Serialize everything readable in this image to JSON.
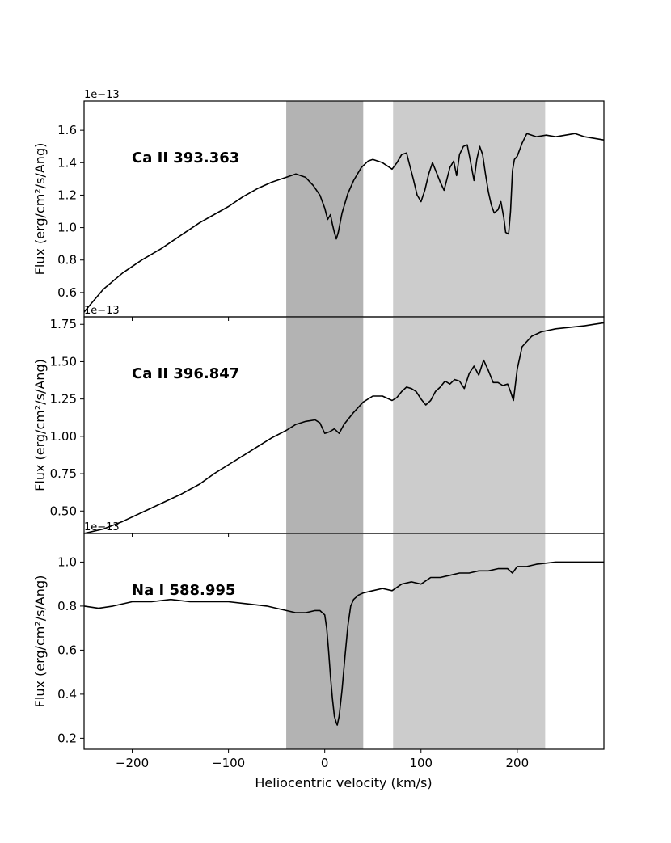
{
  "chart_data": {
    "type": "line",
    "xlabel": "Heliocentric velocity (km/s)",
    "xlim": [
      -250,
      290
    ],
    "xticks": [
      -200,
      -100,
      0,
      100,
      200
    ],
    "xtick_labels": [
      "−200",
      "−100",
      "0",
      "100",
      "200"
    ],
    "shaded_regions": [
      {
        "range": [
          -40,
          40
        ],
        "color": "#b3b3b3"
      },
      {
        "range": [
          71,
          229
        ],
        "color": "#cccccc"
      }
    ],
    "line_color": "#000000",
    "panels": [
      {
        "title": "Ca II 393.363",
        "ylabel": "Flux (erg/cm²/s/Ang)",
        "offset_text": "1e−13",
        "ylim": [
          0.45,
          1.78
        ],
        "yticks": [
          0.6,
          0.8,
          1.0,
          1.2,
          1.4,
          1.6
        ],
        "ytick_labels": [
          "0.6",
          "0.8",
          "1.0",
          "1.2",
          "1.4",
          "1.6"
        ],
        "x": [
          -250,
          -230,
          -210,
          -190,
          -170,
          -150,
          -130,
          -115,
          -100,
          -85,
          -70,
          -55,
          -40,
          -30,
          -20,
          -12,
          -5,
          0,
          3,
          6,
          8,
          10,
          12,
          14,
          18,
          24,
          30,
          38,
          45,
          50,
          55,
          60,
          65,
          70,
          75,
          80,
          85,
          88,
          92,
          96,
          100,
          104,
          108,
          112,
          116,
          120,
          124,
          127,
          130,
          134,
          137,
          140,
          144,
          148,
          151,
          155,
          158,
          161,
          164,
          167,
          170,
          173,
          176,
          180,
          183,
          186,
          188,
          191,
          193,
          195,
          197,
          200,
          205,
          210,
          215,
          220,
          230,
          240,
          250,
          260,
          270,
          280,
          290
        ],
        "values": [
          0.48,
          0.62,
          0.72,
          0.8,
          0.87,
          0.95,
          1.03,
          1.08,
          1.13,
          1.19,
          1.24,
          1.28,
          1.31,
          1.33,
          1.31,
          1.26,
          1.2,
          1.12,
          1.05,
          1.08,
          1.02,
          0.97,
          0.93,
          0.97,
          1.09,
          1.21,
          1.29,
          1.37,
          1.41,
          1.42,
          1.41,
          1.4,
          1.38,
          1.36,
          1.4,
          1.45,
          1.46,
          1.39,
          1.3,
          1.2,
          1.16,
          1.23,
          1.33,
          1.4,
          1.34,
          1.28,
          1.23,
          1.3,
          1.37,
          1.41,
          1.32,
          1.45,
          1.5,
          1.51,
          1.42,
          1.29,
          1.42,
          1.5,
          1.45,
          1.33,
          1.22,
          1.14,
          1.09,
          1.11,
          1.16,
          1.06,
          0.97,
          0.96,
          1.1,
          1.35,
          1.42,
          1.44,
          1.52,
          1.58,
          1.57,
          1.56,
          1.57,
          1.56,
          1.57,
          1.58,
          1.56,
          1.55,
          1.54
        ]
      },
      {
        "title": "Ca II 396.847",
        "ylabel": "Flux (erg/cm²/s/Ang)",
        "offset_text": "1e−13",
        "ylim": [
          0.35,
          1.8
        ],
        "yticks": [
          0.5,
          0.75,
          1.0,
          1.25,
          1.5,
          1.75
        ],
        "ytick_labels": [
          "0.50",
          "0.75",
          "1.00",
          "1.25",
          "1.50",
          "1.75"
        ],
        "x": [
          -250,
          -230,
          -210,
          -190,
          -170,
          -150,
          -130,
          -115,
          -100,
          -85,
          -70,
          -55,
          -40,
          -30,
          -20,
          -10,
          -5,
          0,
          5,
          10,
          15,
          20,
          30,
          40,
          50,
          60,
          70,
          75,
          80,
          85,
          90,
          95,
          100,
          105,
          110,
          115,
          120,
          125,
          130,
          135,
          140,
          145,
          150,
          155,
          160,
          165,
          170,
          175,
          180,
          185,
          190,
          193,
          196,
          200,
          205,
          215,
          225,
          240,
          255,
          270,
          280,
          290
        ],
        "values": [
          0.35,
          0.38,
          0.43,
          0.49,
          0.55,
          0.61,
          0.68,
          0.75,
          0.81,
          0.87,
          0.93,
          0.99,
          1.04,
          1.08,
          1.1,
          1.11,
          1.09,
          1.02,
          1.03,
          1.05,
          1.02,
          1.08,
          1.16,
          1.23,
          1.27,
          1.27,
          1.24,
          1.26,
          1.3,
          1.33,
          1.32,
          1.3,
          1.25,
          1.21,
          1.24,
          1.3,
          1.33,
          1.37,
          1.35,
          1.38,
          1.37,
          1.32,
          1.42,
          1.47,
          1.41,
          1.51,
          1.44,
          1.36,
          1.36,
          1.34,
          1.35,
          1.3,
          1.24,
          1.45,
          1.6,
          1.67,
          1.7,
          1.72,
          1.73,
          1.74,
          1.75,
          1.76
        ]
      },
      {
        "title": "Na I 588.995",
        "ylabel": "Flux (erg/cm²/s/Ang)",
        "offset_text": "1e−13",
        "ylim": [
          0.15,
          1.13
        ],
        "yticks": [
          0.2,
          0.4,
          0.6,
          0.8,
          1.0
        ],
        "ytick_labels": [
          "0.2",
          "0.4",
          "0.6",
          "0.8",
          "1.0"
        ],
        "x": [
          -250,
          -235,
          -220,
          -200,
          -180,
          -160,
          -140,
          -120,
          -100,
          -80,
          -60,
          -40,
          -30,
          -20,
          -10,
          -5,
          0,
          2,
          4,
          6,
          8,
          10,
          12,
          13,
          15,
          18,
          21,
          24,
          27,
          30,
          35,
          40,
          50,
          60,
          70,
          80,
          90,
          100,
          110,
          120,
          130,
          140,
          150,
          160,
          170,
          180,
          190,
          195,
          200,
          210,
          220,
          240,
          260,
          280,
          290
        ],
        "values": [
          0.8,
          0.79,
          0.8,
          0.82,
          0.82,
          0.83,
          0.82,
          0.82,
          0.82,
          0.81,
          0.8,
          0.78,
          0.77,
          0.77,
          0.78,
          0.78,
          0.76,
          0.7,
          0.6,
          0.48,
          0.38,
          0.3,
          0.27,
          0.26,
          0.3,
          0.42,
          0.57,
          0.71,
          0.8,
          0.83,
          0.85,
          0.86,
          0.87,
          0.88,
          0.87,
          0.9,
          0.91,
          0.9,
          0.93,
          0.93,
          0.94,
          0.95,
          0.95,
          0.96,
          0.96,
          0.97,
          0.97,
          0.95,
          0.98,
          0.98,
          0.99,
          1.0,
          1.0,
          1.0,
          1.0
        ]
      }
    ]
  }
}
